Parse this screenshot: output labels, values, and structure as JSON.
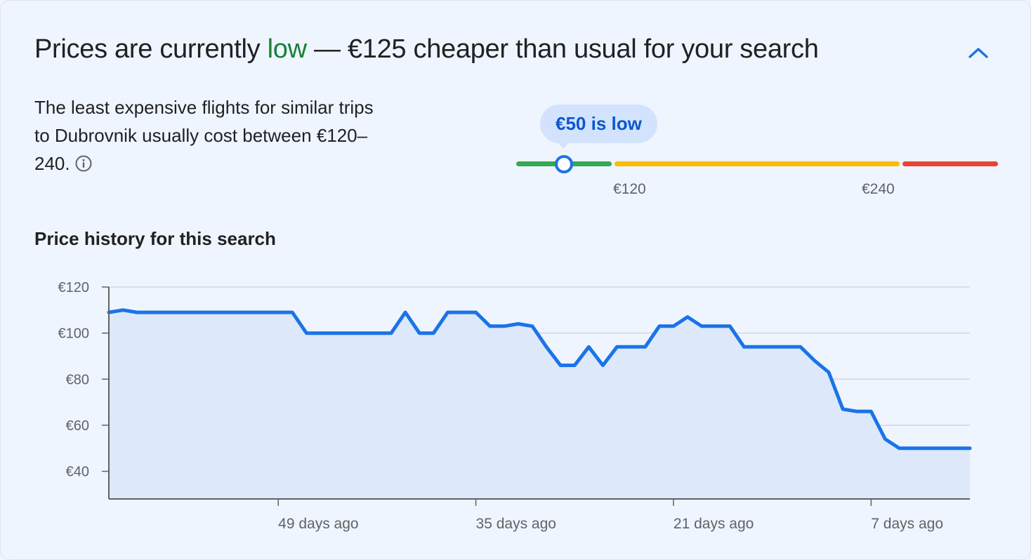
{
  "header": {
    "title_prefix": "Prices are currently ",
    "title_status": "low",
    "title_suffix": " — €125 cheaper than usual for your search"
  },
  "description": "The least expensive flights for similar trips to Dubrovnik usually cost between €120–240.",
  "range": {
    "bubble": "€50 is low",
    "low_label": "€120",
    "high_label": "€240",
    "current_price": 50,
    "colors": {
      "low": "#34a853",
      "typical": "#fbbc04",
      "high": "#ea4335",
      "marker": "#1a73e8"
    }
  },
  "history_title": "Price history for this search",
  "chart_data": {
    "type": "area",
    "title": "Price history for this search",
    "y_ticks": [
      "€120",
      "€100",
      "€80",
      "€60",
      "€40"
    ],
    "ylim": [
      28,
      120
    ],
    "x_ticks": [
      {
        "label": "49 days ago",
        "days_ago": 49
      },
      {
        "label": "35 days ago",
        "days_ago": 35
      },
      {
        "label": "21 days ago",
        "days_ago": 21
      },
      {
        "label": "7 days ago",
        "days_ago": 7
      }
    ],
    "x_range_days_ago": [
      61,
      0
    ],
    "series": [
      {
        "color": "#1a73e8",
        "fill": "#dde8fa",
        "points": [
          [
            61,
            109
          ],
          [
            60,
            110
          ],
          [
            59,
            109
          ],
          [
            58,
            109
          ],
          [
            57,
            109
          ],
          [
            56,
            109
          ],
          [
            55,
            109
          ],
          [
            54,
            109
          ],
          [
            53,
            109
          ],
          [
            52,
            109
          ],
          [
            51,
            109
          ],
          [
            50,
            109
          ],
          [
            49,
            109
          ],
          [
            48,
            109
          ],
          [
            47,
            100
          ],
          [
            46,
            100
          ],
          [
            45,
            100
          ],
          [
            44,
            100
          ],
          [
            43,
            100
          ],
          [
            42,
            100
          ],
          [
            41,
            100
          ],
          [
            40,
            109
          ],
          [
            39,
            100
          ],
          [
            38,
            100
          ],
          [
            37,
            109
          ],
          [
            36,
            109
          ],
          [
            35,
            109
          ],
          [
            34,
            103
          ],
          [
            33,
            103
          ],
          [
            32,
            104
          ],
          [
            31,
            103
          ],
          [
            30,
            94
          ],
          [
            29,
            86
          ],
          [
            28,
            86
          ],
          [
            27,
            94
          ],
          [
            26,
            86
          ],
          [
            25,
            94
          ],
          [
            24,
            94
          ],
          [
            23,
            94
          ],
          [
            22,
            103
          ],
          [
            21,
            103
          ],
          [
            20,
            107
          ],
          [
            19,
            103
          ],
          [
            18,
            103
          ],
          [
            17,
            103
          ],
          [
            16,
            94
          ],
          [
            15,
            94
          ],
          [
            14,
            94
          ],
          [
            13,
            94
          ],
          [
            12,
            94
          ],
          [
            11,
            88
          ],
          [
            10,
            83
          ],
          [
            9,
            67
          ],
          [
            8,
            66
          ],
          [
            7,
            66
          ],
          [
            6,
            54
          ],
          [
            5,
            50
          ],
          [
            4,
            50
          ],
          [
            3,
            50
          ],
          [
            2,
            50
          ],
          [
            1,
            50
          ],
          [
            0,
            50
          ]
        ]
      }
    ]
  }
}
